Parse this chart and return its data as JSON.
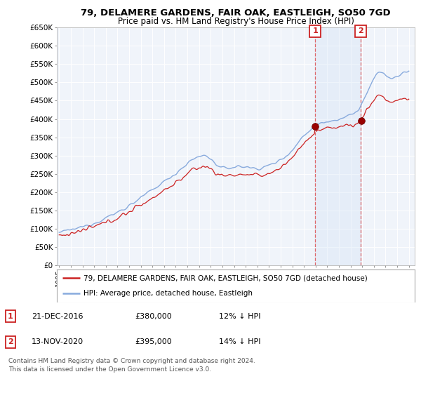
{
  "title": "79, DELAMERE GARDENS, FAIR OAK, EASTLEIGH, SO50 7GD",
  "subtitle": "Price paid vs. HM Land Registry's House Price Index (HPI)",
  "ylim": [
    0,
    650000
  ],
  "yticks": [
    0,
    50000,
    100000,
    150000,
    200000,
    250000,
    300000,
    350000,
    400000,
    450000,
    500000,
    550000,
    600000,
    650000
  ],
  "ytick_labels": [
    "£0",
    "£50K",
    "£100K",
    "£150K",
    "£200K",
    "£250K",
    "£300K",
    "£350K",
    "£400K",
    "£450K",
    "£500K",
    "£550K",
    "£600K",
    "£650K"
  ],
  "sale1_date": 2016.96,
  "sale1_price": 380000,
  "sale1_label": "1",
  "sale2_date": 2020.87,
  "sale2_price": 395000,
  "sale2_label": "2",
  "legend_line1": "79, DELAMERE GARDENS, FAIR OAK, EASTLEIGH, SO50 7GD (detached house)",
  "legend_line2": "HPI: Average price, detached house, Eastleigh",
  "footer": "Contains HM Land Registry data © Crown copyright and database right 2024.\nThis data is licensed under the Open Government Licence v3.0.",
  "line_color_red": "#cc2222",
  "line_color_blue": "#88aadd",
  "bg_plot": "#f0f4fa",
  "highlight_color": "#ddeeff",
  "dashed_color": "#dd4444"
}
